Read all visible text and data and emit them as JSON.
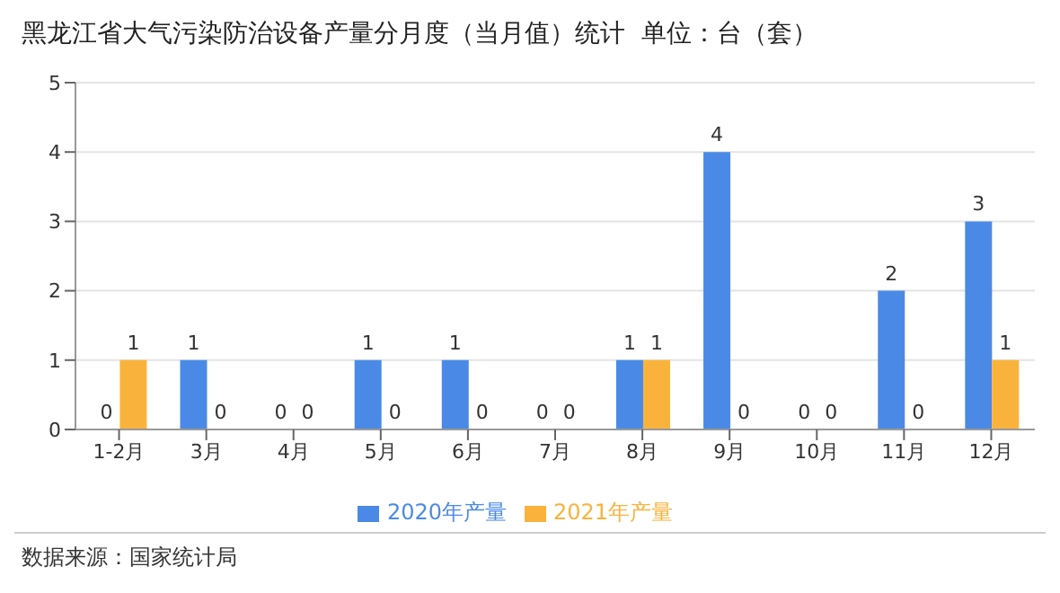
{
  "chart_data": {
    "type": "bar",
    "title": "黑龙江省大气污染防治设备产量分月度（当月值）统计  单位：台（套）",
    "categories": [
      "1-2月",
      "3月",
      "4月",
      "5月",
      "6月",
      "7月",
      "8月",
      "9月",
      "10月",
      "11月",
      "12月"
    ],
    "series": [
      {
        "name": "2020年产量",
        "color": "#4a8ae6",
        "values": [
          0,
          1,
          0,
          1,
          1,
          0,
          1,
          4,
          0,
          2,
          3
        ]
      },
      {
        "name": "2021年产量",
        "color": "#f9b33d",
        "values": [
          1,
          0,
          0,
          0,
          0,
          0,
          1,
          0,
          0,
          0,
          1
        ]
      }
    ],
    "ylim": [
      0,
      5
    ],
    "yticks": [
      0,
      1,
      2,
      3,
      4,
      5
    ],
    "grid": "y",
    "legend": "bottom",
    "data_labels": true,
    "annotations": [
      "数据来源：国家统计局"
    ]
  }
}
